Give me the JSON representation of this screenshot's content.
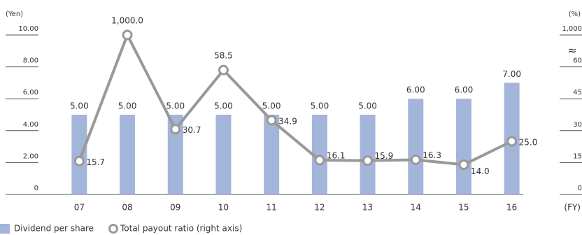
{
  "chart_data": {
    "type": "bar-line",
    "y_label": "(Yen)",
    "y2_label": "(%)",
    "x_label": "(FY)",
    "categories": [
      "07",
      "08",
      "09",
      "10",
      "11",
      "12",
      "13",
      "14",
      "15",
      "16"
    ],
    "series": [
      {
        "name": "Dividend per share",
        "type": "bar",
        "color": "#a3b5d8",
        "values": [
          5,
          5,
          5,
          5,
          5,
          5,
          5,
          6,
          6,
          7
        ],
        "value_labels": [
          "5.00",
          "5.00",
          "5.00",
          "5.00",
          "5.00",
          "5.00",
          "5.00",
          "6.00",
          "6.00",
          "7.00"
        ]
      },
      {
        "name": "Total payout ratio (right axis)",
        "type": "line",
        "axis": "y2",
        "color": "#999999",
        "values": [
          15.7,
          1000,
          30.7,
          58.5,
          34.9,
          16.1,
          15.9,
          16.3,
          14.0,
          25.0
        ],
        "value_labels": [
          "15.7",
          "1,000.0",
          "30.7",
          "58.5",
          "34.9",
          "16.1",
          "15.9",
          "16.3",
          "14.0",
          "25.0"
        ]
      }
    ],
    "ylim": [
      0,
      10
    ],
    "yticks": [
      0,
      {
        "value": 2,
        "label": "2.00"
      },
      {
        "value": 4,
        "label": "4.00"
      },
      {
        "value": 6,
        "label": "6.00"
      },
      {
        "value": 8,
        "label": "8.00"
      },
      {
        "value": 10,
        "label": "10.00"
      }
    ],
    "y2lim": [
      0,
      1000
    ],
    "y2ticks": [
      0,
      15,
      30,
      45,
      60,
      {
        "value": 1000,
        "label": "1,000"
      }
    ],
    "y2_break": true
  }
}
